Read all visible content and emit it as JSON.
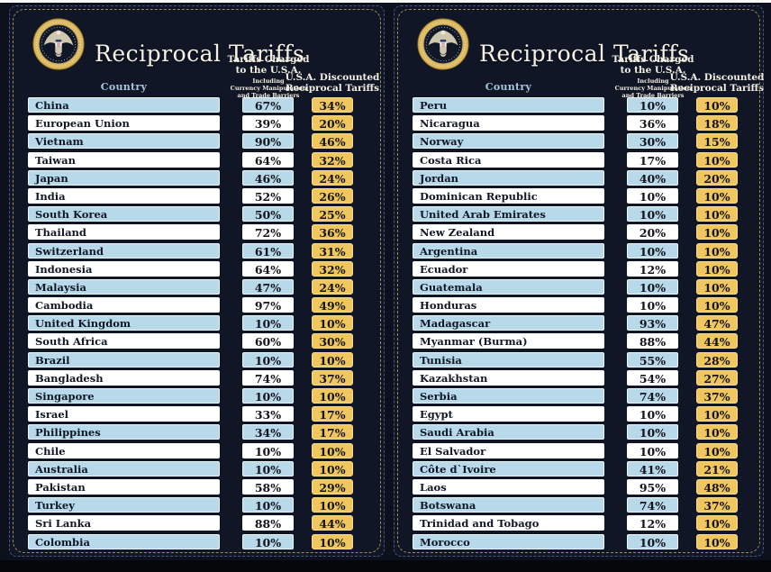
{
  "colors": {
    "background": "#0c111d",
    "panel_background": "#101626",
    "row_blue": "#b7d9e9",
    "row_white": "#ffffff",
    "discounted_gold": "#efc75e",
    "header_cream": "#f2eee2",
    "country_header_blue": "#a6c6dd",
    "inner_border_gold": "#a18b52",
    "outer_border_blue": "#44587c"
  },
  "panels": [
    {
      "title": "Reciprocal Tariffs",
      "headers": {
        "country": "Country",
        "charged_line1": "Tariffs Charged",
        "charged_line2": "to the U.S.A.",
        "charged_sub1": "Including",
        "charged_sub2": "Currency Manipulation",
        "charged_sub3": "and Trade Barriers",
        "discounted_line1": "U.S.A. Discounted",
        "discounted_line2": "Reciprocal Tariffs"
      },
      "rows": [
        {
          "country": "China",
          "charged": "67%",
          "discounted": "34%"
        },
        {
          "country": "European Union",
          "charged": "39%",
          "discounted": "20%"
        },
        {
          "country": "Vietnam",
          "charged": "90%",
          "discounted": "46%"
        },
        {
          "country": "Taiwan",
          "charged": "64%",
          "discounted": "32%"
        },
        {
          "country": "Japan",
          "charged": "46%",
          "discounted": "24%"
        },
        {
          "country": "India",
          "charged": "52%",
          "discounted": "26%"
        },
        {
          "country": "South Korea",
          "charged": "50%",
          "discounted": "25%"
        },
        {
          "country": "Thailand",
          "charged": "72%",
          "discounted": "36%"
        },
        {
          "country": "Switzerland",
          "charged": "61%",
          "discounted": "31%"
        },
        {
          "country": "Indonesia",
          "charged": "64%",
          "discounted": "32%"
        },
        {
          "country": "Malaysia",
          "charged": "47%",
          "discounted": "24%"
        },
        {
          "country": "Cambodia",
          "charged": "97%",
          "discounted": "49%"
        },
        {
          "country": "United Kingdom",
          "charged": "10%",
          "discounted": "10%"
        },
        {
          "country": "South Africa",
          "charged": "60%",
          "discounted": "30%"
        },
        {
          "country": "Brazil",
          "charged": "10%",
          "discounted": "10%"
        },
        {
          "country": "Bangladesh",
          "charged": "74%",
          "discounted": "37%"
        },
        {
          "country": "Singapore",
          "charged": "10%",
          "discounted": "10%"
        },
        {
          "country": "Israel",
          "charged": "33%",
          "discounted": "17%"
        },
        {
          "country": "Philippines",
          "charged": "34%",
          "discounted": "17%"
        },
        {
          "country": "Chile",
          "charged": "10%",
          "discounted": "10%"
        },
        {
          "country": "Australia",
          "charged": "10%",
          "discounted": "10%"
        },
        {
          "country": "Pakistan",
          "charged": "58%",
          "discounted": "29%"
        },
        {
          "country": "Turkey",
          "charged": "10%",
          "discounted": "10%"
        },
        {
          "country": "Sri Lanka",
          "charged": "88%",
          "discounted": "44%"
        },
        {
          "country": "Colombia",
          "charged": "10%",
          "discounted": "10%"
        }
      ]
    },
    {
      "title": "Reciprocal Tariffs",
      "headers": {
        "country": "Country",
        "charged_line1": "Tariffs Charged",
        "charged_line2": "to the U.S.A.",
        "charged_sub1": "Including",
        "charged_sub2": "Currency Manipulation",
        "charged_sub3": "and Trade Barriers",
        "discounted_line1": "U.S.A. Discounted",
        "discounted_line2": "Reciprocal Tariffs"
      },
      "rows": [
        {
          "country": "Peru",
          "charged": "10%",
          "discounted": "10%"
        },
        {
          "country": "Nicaragua",
          "charged": "36%",
          "discounted": "18%"
        },
        {
          "country": "Norway",
          "charged": "30%",
          "discounted": "15%"
        },
        {
          "country": "Costa Rica",
          "charged": "17%",
          "discounted": "10%"
        },
        {
          "country": "Jordan",
          "charged": "40%",
          "discounted": "20%"
        },
        {
          "country": "Dominican Republic",
          "charged": "10%",
          "discounted": "10%"
        },
        {
          "country": "United Arab Emirates",
          "charged": "10%",
          "discounted": "10%"
        },
        {
          "country": "New Zealand",
          "charged": "20%",
          "discounted": "10%"
        },
        {
          "country": "Argentina",
          "charged": "10%",
          "discounted": "10%"
        },
        {
          "country": "Ecuador",
          "charged": "12%",
          "discounted": "10%"
        },
        {
          "country": "Guatemala",
          "charged": "10%",
          "discounted": "10%"
        },
        {
          "country": "Honduras",
          "charged": "10%",
          "discounted": "10%"
        },
        {
          "country": "Madagascar",
          "charged": "93%",
          "discounted": "47%"
        },
        {
          "country": "Myanmar (Burma)",
          "charged": "88%",
          "discounted": "44%"
        },
        {
          "country": "Tunisia",
          "charged": "55%",
          "discounted": "28%"
        },
        {
          "country": "Kazakhstan",
          "charged": "54%",
          "discounted": "27%"
        },
        {
          "country": "Serbia",
          "charged": "74%",
          "discounted": "37%"
        },
        {
          "country": "Egypt",
          "charged": "10%",
          "discounted": "10%"
        },
        {
          "country": "Saudi Arabia",
          "charged": "10%",
          "discounted": "10%"
        },
        {
          "country": "El Salvador",
          "charged": "10%",
          "discounted": "10%"
        },
        {
          "country": "Côte d`Ivoire",
          "charged": "41%",
          "discounted": "21%"
        },
        {
          "country": "Laos",
          "charged": "95%",
          "discounted": "48%"
        },
        {
          "country": "Botswana",
          "charged": "74%",
          "discounted": "37%"
        },
        {
          "country": "Trinidad and Tobago",
          "charged": "12%",
          "discounted": "10%"
        },
        {
          "country": "Morocco",
          "charged": "10%",
          "discounted": "10%"
        }
      ]
    }
  ],
  "chart_data": {
    "type": "table",
    "title": "Reciprocal Tariffs",
    "columns": [
      "Country",
      "Tariffs Charged to the U.S.A. Including Currency Manipulation and Trade Barriers (%)",
      "U.S.A. Discounted Reciprocal Tariffs (%)"
    ],
    "rows": [
      [
        "China",
        67,
        34
      ],
      [
        "European Union",
        39,
        20
      ],
      [
        "Vietnam",
        90,
        46
      ],
      [
        "Taiwan",
        64,
        32
      ],
      [
        "Japan",
        46,
        24
      ],
      [
        "India",
        52,
        26
      ],
      [
        "South Korea",
        50,
        25
      ],
      [
        "Thailand",
        72,
        36
      ],
      [
        "Switzerland",
        61,
        31
      ],
      [
        "Indonesia",
        64,
        32
      ],
      [
        "Malaysia",
        47,
        24
      ],
      [
        "Cambodia",
        97,
        49
      ],
      [
        "United Kingdom",
        10,
        10
      ],
      [
        "South Africa",
        60,
        30
      ],
      [
        "Brazil",
        10,
        10
      ],
      [
        "Bangladesh",
        74,
        37
      ],
      [
        "Singapore",
        10,
        10
      ],
      [
        "Israel",
        33,
        17
      ],
      [
        "Philippines",
        34,
        17
      ],
      [
        "Chile",
        10,
        10
      ],
      [
        "Australia",
        10,
        10
      ],
      [
        "Pakistan",
        58,
        29
      ],
      [
        "Turkey",
        10,
        10
      ],
      [
        "Sri Lanka",
        88,
        44
      ],
      [
        "Colombia",
        10,
        10
      ],
      [
        "Peru",
        10,
        10
      ],
      [
        "Nicaragua",
        36,
        18
      ],
      [
        "Norway",
        30,
        15
      ],
      [
        "Costa Rica",
        17,
        10
      ],
      [
        "Jordan",
        40,
        20
      ],
      [
        "Dominican Republic",
        10,
        10
      ],
      [
        "United Arab Emirates",
        10,
        10
      ],
      [
        "New Zealand",
        20,
        10
      ],
      [
        "Argentina",
        10,
        10
      ],
      [
        "Ecuador",
        12,
        10
      ],
      [
        "Guatemala",
        10,
        10
      ],
      [
        "Honduras",
        10,
        10
      ],
      [
        "Madagascar",
        93,
        47
      ],
      [
        "Myanmar (Burma)",
        88,
        44
      ],
      [
        "Tunisia",
        55,
        28
      ],
      [
        "Kazakhstan",
        54,
        27
      ],
      [
        "Serbia",
        74,
        37
      ],
      [
        "Egypt",
        10,
        10
      ],
      [
        "Saudi Arabia",
        10,
        10
      ],
      [
        "El Salvador",
        10,
        10
      ],
      [
        "Côte d`Ivoire",
        41,
        21
      ],
      [
        "Laos",
        95,
        48
      ],
      [
        "Botswana",
        74,
        37
      ],
      [
        "Trinidad and Tobago",
        12,
        10
      ],
      [
        "Morocco",
        10,
        10
      ]
    ]
  }
}
